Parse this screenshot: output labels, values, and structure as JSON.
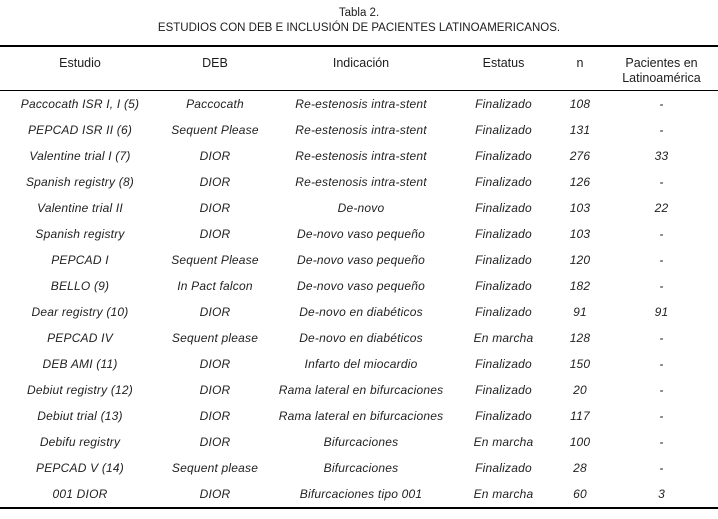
{
  "title": {
    "line1": "Tabla 2.",
    "line2": "ESTUDIOS CON DEB E INCLUSIÓN DE PACIENTES LATINOAMERICANOS."
  },
  "colors": {
    "background": "#ffffff",
    "text": "#1c1c1c",
    "rule": "#000000"
  },
  "table": {
    "column_keys": [
      "estudio",
      "deb",
      "indicacion",
      "estatus",
      "n",
      "pacientes-latinoamerica"
    ],
    "columns": [
      "Estudio",
      "DEB",
      "Indicación",
      "Estatus",
      "n",
      "Pacientes en Latinoamérica"
    ],
    "rows": [
      [
        "Paccocath ISR I, I (5)",
        "Paccocath",
        "Re-estenosis intra-stent",
        "Finalizado",
        "108",
        "-"
      ],
      [
        "PEPCAD ISR II (6)",
        "Sequent Please",
        "Re-estenosis intra-stent",
        "Finalizado",
        "131",
        "-"
      ],
      [
        "Valentine trial I (7)",
        "DIOR",
        "Re-estenosis intra-stent",
        "Finalizado",
        "276",
        "33"
      ],
      [
        "Spanish registry (8)",
        "DIOR",
        "Re-estenosis intra-stent",
        "Finalizado",
        "126",
        "-"
      ],
      [
        "Valentine trial II",
        "DIOR",
        "De-novo",
        "Finalizado",
        "103",
        "22"
      ],
      [
        "Spanish registry",
        "DIOR",
        "De-novo vaso pequeño",
        "Finalizado",
        "103",
        "-"
      ],
      [
        "PEPCAD I",
        "Sequent Please",
        "De-novo vaso pequeño",
        "Finalizado",
        "120",
        "-"
      ],
      [
        "BELLO (9)",
        "In Pact falcon",
        "De-novo vaso pequeño",
        "Finalizado",
        "182",
        "-"
      ],
      [
        "Dear registry (10)",
        "DIOR",
        "De-novo en diabéticos",
        "Finalizado",
        "91",
        "91"
      ],
      [
        "PEPCAD IV",
        "Sequent please",
        "De-novo en diabéticos",
        "En marcha",
        "128",
        "-"
      ],
      [
        "DEB AMI (11)",
        "DIOR",
        "Infarto del miocardio",
        "Finalizado",
        "150",
        "-"
      ],
      [
        "Debiut registry (12)",
        "DIOR",
        "Rama lateral en bifurcaciones",
        "Finalizado",
        "20",
        "-"
      ],
      [
        "Debiut trial (13)",
        "DIOR",
        "Rama lateral en bifurcaciones",
        "Finalizado",
        "117",
        "-"
      ],
      [
        "Debifu registry",
        "DIOR",
        "Bifurcaciones",
        "En marcha",
        "100",
        "-"
      ],
      [
        "PEPCAD V (14)",
        "Sequent please",
        "Bifurcaciones",
        "Finalizado",
        "28",
        "-"
      ],
      [
        "001 DIOR",
        "DIOR",
        "Bifurcaciones tipo 001",
        "En marcha",
        "60",
        "3"
      ]
    ]
  }
}
